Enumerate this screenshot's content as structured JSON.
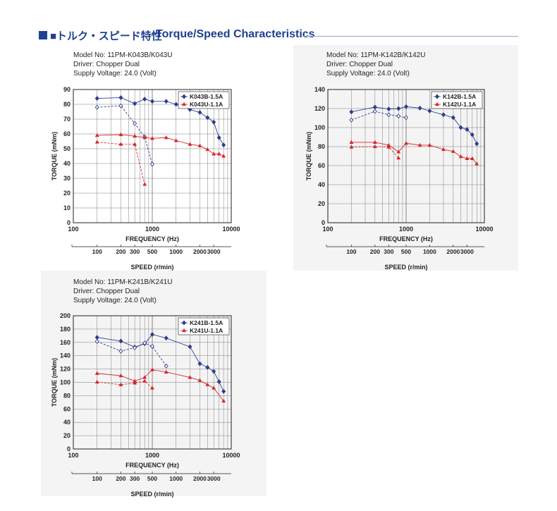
{
  "header": {
    "title_jp": "■トルク・スピード特性",
    "title_en": "Torque/Speed Characteristics"
  },
  "chart_data": [
    {
      "type": "line",
      "info": [
        "Model No: 11PM-K043B/K043U",
        "Driver: Chopper Dual",
        "Supply Voltage: 24.0 (Volt)"
      ],
      "xlabel": "FREQUENCY (Hz)",
      "ylabel": "TORQUE (mNm)",
      "speed_label": "SPEED (r/min)",
      "x_scale": "log",
      "xlim": [
        100,
        10000
      ],
      "ylim": [
        0,
        90
      ],
      "y_ticks": [
        0,
        10,
        20,
        30,
        40,
        50,
        60,
        70,
        80,
        90
      ],
      "x_tick_labels": [
        "100",
        "1000",
        "10000"
      ],
      "speed_ticks": [
        "100",
        "200",
        "300",
        "500",
        "1000",
        "2000",
        "3000"
      ],
      "grid": true,
      "legend_position": "top-right",
      "series": [
        {
          "name": "K043B-1.5A",
          "color": "#2e3d8f",
          "marker": "diamond-filled",
          "dash": false,
          "x": [
            200,
            400,
            600,
            800,
            1000,
            1500,
            2000,
            3000,
            4000,
            5000,
            6000,
            7000,
            8000
          ],
          "y": [
            84,
            84.5,
            80.5,
            83.5,
            82,
            82,
            80,
            76.5,
            74.5,
            71,
            68,
            57.5,
            52.5
          ]
        },
        {
          "name": "K043U-1.1A",
          "color": "#2e3d8f",
          "marker": "diamond-open",
          "dash": true,
          "x": [
            200,
            400,
            600,
            800,
            1000
          ],
          "y": [
            78,
            79,
            67,
            58,
            39.5
          ]
        },
        {
          "name": "K043B-1.5A",
          "color": "#d7262b",
          "marker": "triangle",
          "dash": false,
          "x": [
            200,
            400,
            600,
            800,
            1000,
            1500,
            2000,
            3000,
            4000,
            5000,
            6000,
            7000,
            8000
          ],
          "y": [
            59,
            59.5,
            58.5,
            57.5,
            57,
            57.5,
            55.5,
            53,
            52,
            49.5,
            46.5,
            46.5,
            45
          ]
        },
        {
          "name": "K043U-1.1A",
          "color": "#d7262b",
          "marker": "triangle",
          "dash": true,
          "x": [
            200,
            400,
            600,
            800
          ],
          "y": [
            54.5,
            53,
            53,
            26
          ]
        }
      ],
      "legend": [
        {
          "label": "K043B-1.5A",
          "color": "#2e3d8f",
          "marker": "diamond-filled"
        },
        {
          "label": "K043U-1.1A",
          "color": "#d7262b",
          "marker": "triangle"
        }
      ]
    },
    {
      "type": "line",
      "info": [
        "Model No: 11PM-K142B/K142U",
        "Driver: Chopper Dual",
        "Supply Voltage: 24.0 (Volt)"
      ],
      "xlabel": "FREQUENCY (Hz)",
      "ylabel": "TORQUE (mNm)",
      "speed_label": "SPEED (r/min)",
      "x_scale": "log",
      "xlim": [
        100,
        10000
      ],
      "ylim": [
        0,
        140
      ],
      "y_ticks": [
        0,
        20,
        40,
        60,
        80,
        100,
        120,
        140
      ],
      "x_tick_labels": [
        "100",
        "1000",
        "10000"
      ],
      "speed_ticks": [
        "100",
        "200",
        "300",
        "500",
        "1000",
        "2000",
        "3000"
      ],
      "grid": true,
      "legend_position": "top-right",
      "series": [
        {
          "name": "K142B-1.5A",
          "color": "#2e3d8f",
          "marker": "diamond-filled",
          "dash": false,
          "x": [
            200,
            400,
            600,
            800,
            1000,
            1500,
            2000,
            3000,
            4000,
            5000,
            6000,
            7000,
            8000
          ],
          "y": [
            116.5,
            121.5,
            119.5,
            120,
            122,
            120.5,
            117.5,
            113.5,
            110.5,
            100,
            98,
            92.5,
            83
          ]
        },
        {
          "name": "K142U-1.1A",
          "color": "#2e3d8f",
          "marker": "diamond-open",
          "dash": true,
          "x": [
            200,
            400,
            600,
            800,
            1000
          ],
          "y": [
            108,
            117,
            113.5,
            112,
            110.5
          ]
        },
        {
          "name": "K142B-1.5A",
          "color": "#d7262b",
          "marker": "triangle",
          "dash": false,
          "x": [
            200,
            400,
            600,
            800,
            1000,
            1500,
            2000,
            3000,
            4000,
            5000,
            6000,
            7000,
            8000
          ],
          "y": [
            84.5,
            84.5,
            81.5,
            74.5,
            83.5,
            81.5,
            81.5,
            77,
            75,
            69.5,
            67.5,
            67.5,
            62
          ]
        },
        {
          "name": "K142U-1.1A",
          "color": "#d7262b",
          "marker": "triangle",
          "dash": true,
          "x": [
            200,
            400,
            600,
            800
          ],
          "y": [
            79.5,
            80,
            79.5,
            68
          ]
        }
      ],
      "legend": [
        {
          "label": "K142B-1.5A",
          "color": "#2e3d8f",
          "marker": "diamond-filled"
        },
        {
          "label": "K142U-1.1A",
          "color": "#d7262b",
          "marker": "triangle"
        }
      ]
    },
    {
      "type": "line",
      "info": [
        "Model No: 11PM-K241B/K241U",
        "Driver: Chopper Dual",
        "Supply Voltage: 24.0 (Volt)"
      ],
      "xlabel": "FREQUENCY (Hz)",
      "ylabel": "TORQUE (mNm)",
      "speed_label": "SPEED (r/min)",
      "x_scale": "log",
      "xlim": [
        100,
        10000
      ],
      "ylim": [
        0,
        200
      ],
      "y_ticks": [
        0,
        20,
        40,
        60,
        80,
        100,
        120,
        140,
        160,
        180,
        200
      ],
      "x_tick_labels": [
        "100",
        "1000",
        "10000"
      ],
      "speed_ticks": [
        "100",
        "200",
        "300",
        "500",
        "1000",
        "2000",
        "3000"
      ],
      "grid": true,
      "legend_position": "top-right",
      "series": [
        {
          "name": "K241B-1.5A",
          "color": "#2e3d8f",
          "marker": "diamond-filled",
          "dash": false,
          "x": [
            200,
            400,
            600,
            800,
            1000,
            1500,
            3000,
            4000,
            5000,
            6000,
            7000,
            8000
          ],
          "y": [
            167.5,
            162,
            153,
            158,
            172,
            166.5,
            153.5,
            128,
            122.5,
            116.5,
            101,
            86.5
          ]
        },
        {
          "name": "K241U-1.1A",
          "color": "#2e3d8f",
          "marker": "diamond-open",
          "dash": true,
          "x": [
            200,
            400,
            600,
            800,
            1000,
            1500
          ],
          "y": [
            161.5,
            147,
            152,
            159,
            154,
            124.5
          ]
        },
        {
          "name": "K241B-1.5A",
          "color": "#d7262b",
          "marker": "triangle",
          "dash": false,
          "x": [
            200,
            400,
            600,
            800,
            1000,
            1500,
            3000,
            4000,
            5000,
            6000,
            8000
          ],
          "y": [
            113.5,
            110,
            102,
            107.5,
            119,
            115.5,
            107.5,
            103,
            96.5,
            91.5,
            72
          ]
        },
        {
          "name": "K241U-1.1A",
          "color": "#d7262b",
          "marker": "triangle",
          "dash": true,
          "x": [
            200,
            400,
            600,
            800,
            1000
          ],
          "y": [
            100.5,
            96.5,
            99,
            102,
            91.5
          ]
        }
      ],
      "legend": [
        {
          "label": "K241B-1.5A",
          "color": "#2e3d8f",
          "marker": "diamond-filled"
        },
        {
          "label": "K241U-1.1A",
          "color": "#d7262b",
          "marker": "triangle"
        }
      ]
    }
  ]
}
